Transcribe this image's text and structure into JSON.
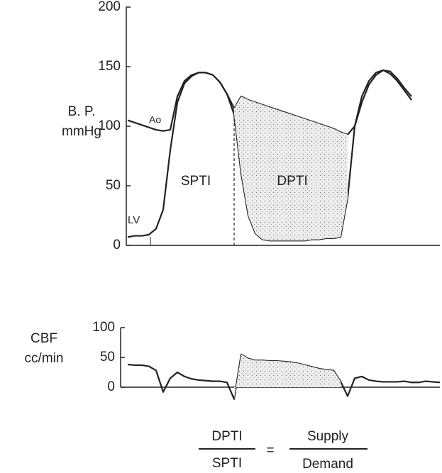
{
  "chart_data": [
    {
      "type": "line",
      "y_label": [
        "B. P.",
        "mmHg"
      ],
      "annotations": {
        "ao": "Ao",
        "lv": "LV",
        "systolic": "SPTI",
        "diastolic": "DPTI"
      },
      "categories": [
        null,
        null,
        null,
        null,
        null,
        null,
        null,
        null,
        null,
        null,
        null,
        null,
        null,
        null,
        null,
        null,
        null,
        null,
        null,
        null,
        null,
        null,
        null,
        null,
        null,
        null,
        null,
        null,
        null,
        null,
        null,
        null,
        null,
        null,
        null,
        null,
        null,
        null,
        null,
        null,
        null
      ],
      "series": [
        {
          "name": "Ao",
          "color": "#222222",
          "values": [
            105,
            103,
            101,
            99,
            97,
            96,
            97,
            125,
            138,
            143,
            145,
            145,
            143,
            137,
            127,
            115,
            125,
            122,
            120,
            118,
            116,
            114,
            112,
            110,
            108,
            106,
            104,
            102,
            100,
            98,
            95,
            93,
            100,
            120,
            135,
            143,
            147,
            146,
            140,
            132,
            125
          ]
        },
        {
          "name": "LV",
          "color": "#222222",
          "values": [
            7,
            8,
            8,
            9,
            14,
            30,
            80,
            120,
            136,
            142,
            145,
            145,
            143,
            137,
            127,
            110,
            60,
            25,
            10,
            5,
            4,
            4,
            4,
            4,
            4,
            4,
            5,
            5,
            6,
            6,
            7,
            40,
            100,
            125,
            138,
            145,
            147,
            144,
            138,
            130,
            122
          ]
        }
      ],
      "ylim": [
        0,
        200
      ],
      "yticks": [
        0,
        50,
        100,
        150,
        200
      ]
    },
    {
      "type": "line",
      "y_label": [
        "CBF",
        "cc/min"
      ],
      "categories": [
        null,
        null,
        null,
        null,
        null,
        null,
        null,
        null,
        null,
        null,
        null,
        null,
        null,
        null,
        null,
        null,
        null,
        null,
        null,
        null,
        null,
        null,
        null,
        null,
        null,
        null,
        null,
        null,
        null,
        null,
        null,
        null,
        null,
        null,
        null,
        null,
        null,
        null,
        null,
        null,
        null,
        null,
        null,
        null,
        null
      ],
      "series": [
        {
          "name": "CBF",
          "color": "#222222",
          "values": [
            38,
            37,
            37,
            35,
            28,
            -8,
            15,
            25,
            18,
            14,
            12,
            11,
            10,
            10,
            8,
            -20,
            55,
            48,
            45,
            45,
            44,
            44,
            43,
            42,
            40,
            37,
            34,
            31,
            29,
            28,
            10,
            -15,
            15,
            18,
            12,
            10,
            9,
            9,
            9,
            10,
            8,
            8,
            10,
            9,
            8
          ]
        }
      ],
      "ylim": [
        0,
        100
      ],
      "yticks": [
        0,
        50,
        100
      ]
    }
  ],
  "formula": {
    "numerator_left": "DPTI",
    "denominator_left": "SPTI",
    "equals": "=",
    "numerator_right": "Supply",
    "denominator_right": "Demand"
  }
}
